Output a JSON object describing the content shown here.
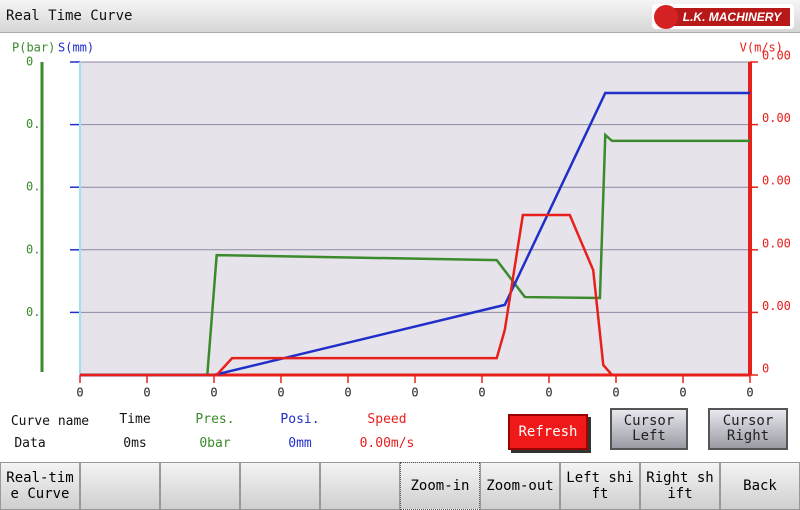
{
  "header": {
    "title": "Real Time Curve",
    "logo": "L.K. MACHINERY"
  },
  "chart_data": {
    "type": "line",
    "y_label": "P(bar)",
    "y_label_2": "S(mm)",
    "y2_label": "V(m/s)",
    "xlim": [
      0,
      10
    ],
    "xticks": [
      0,
      {
        "value": 1,
        "label": "0"
      },
      {
        "value": 2,
        "label": "0"
      },
      {
        "value": 3,
        "label": "0"
      },
      {
        "value": 4,
        "label": "0"
      },
      {
        "value": 5,
        "label": "0"
      },
      {
        "value": 6,
        "label": "0"
      },
      {
        "value": 7,
        "label": "0"
      },
      {
        "value": 8,
        "label": "0"
      },
      {
        "value": 9,
        "label": "0"
      },
      {
        "value": 10,
        "label": "0"
      }
    ],
    "ylim": [
      0,
      10
    ],
    "yticks": [
      {
        "value": 2,
        "label": "0."
      },
      {
        "value": 4,
        "label": "0."
      },
      {
        "value": 6,
        "label": "0."
      },
      {
        "value": 8,
        "label": "0."
      },
      {
        "value": 10,
        "label": "0"
      }
    ],
    "y2lim": [
      0,
      10
    ],
    "y2ticks": [
      0,
      {
        "value": 2,
        "label": "0.00"
      },
      {
        "value": 4,
        "label": "0.00"
      },
      {
        "value": 6,
        "label": "0.00"
      },
      {
        "value": 8,
        "label": "0.00"
      },
      {
        "value": 10,
        "label": "0.00"
      }
    ],
    "grid": true,
    "plot_background": "#e7e3eb",
    "series": [
      {
        "name": "Pres.",
        "color": "#3b8a2c",
        "current": "0bar",
        "x": [
          0,
          1.9,
          2.04,
          6.22,
          6.64,
          7.76,
          7.84,
          7.94,
          10
        ],
        "values": [
          0,
          0,
          3.83,
          3.67,
          2.49,
          2.46,
          7.67,
          7.48,
          7.48
        ]
      },
      {
        "name": "Posi.",
        "color": "#1f2fc8",
        "current": "0mm",
        "x": [
          0,
          2,
          6.34,
          7.84,
          10
        ],
        "values": [
          0,
          0,
          2.24,
          9.01,
          9.01
        ]
      },
      {
        "name": "Speed",
        "color": "#e8201c",
        "current": "0.00m/s",
        "axis": "y2",
        "x": [
          0,
          2.04,
          2.27,
          6.22,
          6.34,
          6.61,
          7.31,
          7.66,
          7.81,
          7.94,
          10
        ],
        "values": [
          0,
          0,
          0.54,
          0.54,
          1.44,
          5.11,
          5.11,
          3.35,
          0.32,
          0,
          0
        ]
      }
    ]
  },
  "readout": {
    "curve_name_label": "Curve name",
    "data_label": "Data",
    "time_label": "Time",
    "time_value": "0ms"
  },
  "buttons": {
    "refresh": "Refresh",
    "cursor_left": "Cursor Left",
    "cursor_right": "Cursor Right"
  },
  "menu": [
    "Real-time Curve",
    "Zoom-in",
    "Zoom-out",
    "Left shift",
    "Right shift",
    "Back"
  ]
}
